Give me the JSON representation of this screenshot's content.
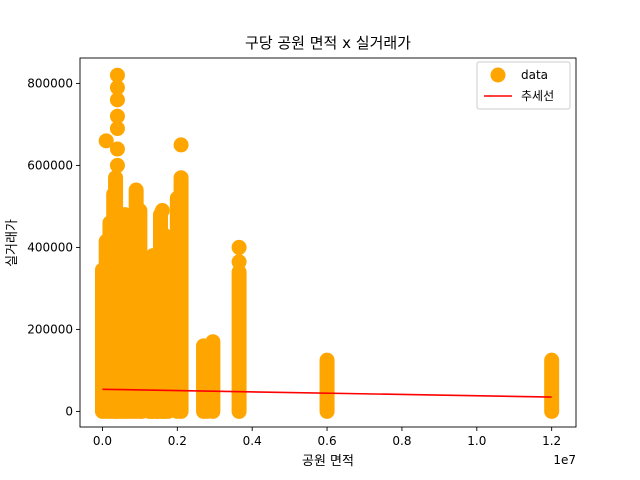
{
  "chart_data": {
    "type": "scatter",
    "title": "구당 공원 면적 x 실거래가",
    "xlabel": "공원 면적",
    "ylabel": "실거래가",
    "x_offset_label": "1e7",
    "xlim": [
      -0.06,
      1.265
    ],
    "ylim": [
      -38000,
      862000
    ],
    "x_unit_multiplier": 10000000,
    "x_ticks": [
      0.0,
      0.2,
      0.4,
      0.6,
      0.8,
      1.0,
      1.2
    ],
    "x_tick_labels": [
      "0.0",
      "0.2",
      "0.4",
      "0.6",
      "0.8",
      "1.0",
      "1.2"
    ],
    "y_ticks": [
      0,
      200000,
      400000,
      600000,
      800000
    ],
    "y_tick_labels": [
      "0",
      "200000",
      "400000",
      "600000",
      "800000"
    ],
    "grid": false,
    "legend_position": "top-right",
    "series": [
      {
        "name": "data",
        "kind": "scatter",
        "color": "#FFA500",
        "columns": [
          {
            "x": 0.0,
            "ymin": 0,
            "ymax": 345000
          },
          {
            "x": 0.01,
            "ymin": 0,
            "ymax": 415000
          },
          {
            "x": 0.02,
            "ymin": 0,
            "ymax": 460000
          },
          {
            "x": 0.03,
            "ymin": 0,
            "ymax": 530000
          },
          {
            "x": 0.035,
            "ymin": 0,
            "ymax": 570000
          },
          {
            "x": 0.04,
            "ymin": 0,
            "ymax": 450000
          },
          {
            "x": 0.05,
            "ymin": 0,
            "ymax": 400000
          },
          {
            "x": 0.06,
            "ymin": 0,
            "ymax": 480000
          },
          {
            "x": 0.07,
            "ymin": 0,
            "ymax": 380000
          },
          {
            "x": 0.08,
            "ymin": 0,
            "ymax": 470000
          },
          {
            "x": 0.09,
            "ymin": 0,
            "ymax": 540000
          },
          {
            "x": 0.1,
            "ymin": 0,
            "ymax": 490000
          },
          {
            "x": 0.105,
            "ymin": 0,
            "ymax": 300000
          },
          {
            "x": 0.125,
            "ymin": 0,
            "ymax": 120000
          },
          {
            "x": 0.145,
            "ymin": 0,
            "ymax": 80000
          },
          {
            "x": 0.165,
            "ymin": 0,
            "ymax": 100000
          },
          {
            "x": 0.195,
            "ymin": 10000,
            "ymax": 90000
          },
          {
            "x": 0.135,
            "ymin": 0,
            "ymax": 380000
          },
          {
            "x": 0.13,
            "ymin": 0,
            "ymax": 220000
          },
          {
            "x": 0.145,
            "ymin": 0,
            "ymax": 150000
          },
          {
            "x": 0.155,
            "ymin": 0,
            "ymax": 480000
          },
          {
            "x": 0.165,
            "ymin": 0,
            "ymax": 430000
          },
          {
            "x": 0.175,
            "ymin": 0,
            "ymax": 300000
          },
          {
            "x": 0.2,
            "ymin": 0,
            "ymax": 520000
          },
          {
            "x": 0.21,
            "ymin": 0,
            "ymax": 570000
          },
          {
            "x": 0.27,
            "ymin": 0,
            "ymax": 160000
          },
          {
            "x": 0.28,
            "ymin": 0,
            "ymax": 130000
          },
          {
            "x": 0.295,
            "ymin": 0,
            "ymax": 170000
          },
          {
            "x": 0.365,
            "ymin": 0,
            "ymax": 340000
          },
          {
            "x": 0.6,
            "ymin": 0,
            "ymax": 125000
          },
          {
            "x": 1.2,
            "ymin": 0,
            "ymax": 125000
          }
        ],
        "points": [
          {
            "x": 0.01,
            "y": 660000
          },
          {
            "x": 0.04,
            "y": 820000
          },
          {
            "x": 0.04,
            "y": 790000
          },
          {
            "x": 0.04,
            "y": 760000
          },
          {
            "x": 0.04,
            "y": 720000
          },
          {
            "x": 0.04,
            "y": 690000
          },
          {
            "x": 0.04,
            "y": 640000
          },
          {
            "x": 0.04,
            "y": 600000
          },
          {
            "x": 0.21,
            "y": 650000
          },
          {
            "x": 0.16,
            "y": 490000
          },
          {
            "x": 0.365,
            "y": 400000
          },
          {
            "x": 0.365,
            "y": 365000
          }
        ]
      },
      {
        "name": "추세선",
        "kind": "line",
        "color": "#FF0000",
        "x": [
          0.0,
          1.2
        ],
        "y": [
          54000,
          35000
        ]
      }
    ]
  }
}
